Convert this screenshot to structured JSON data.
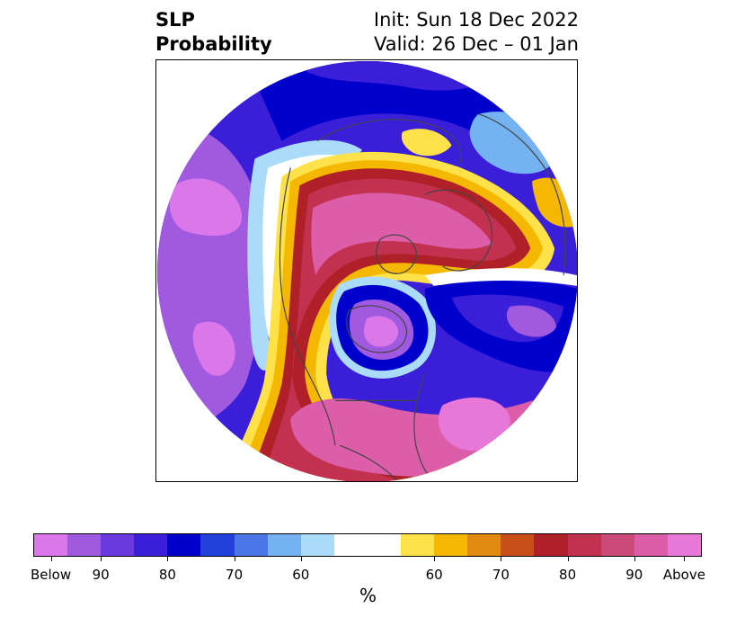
{
  "title": {
    "left_line1": "SLP",
    "left_line2": "Probability",
    "right_line1": "Init: Sun 18 Dec 2022",
    "right_line2": "Valid: 26 Dec – 01 Jan"
  },
  "colorbar": {
    "colors": [
      "#db77ea",
      "#a05ae0",
      "#6a3ade",
      "#3a1ed8",
      "#0000cc",
      "#2240dc",
      "#4a76e8",
      "#74b2f2",
      "#aadcfa",
      "#ffffff",
      "#ffe24a",
      "#f5b800",
      "#e08a10",
      "#c85018",
      "#b02028",
      "#c23250",
      "#cc4a7a",
      "#dc5ea8",
      "#e878d8"
    ],
    "widths": [
      1,
      1,
      1,
      1,
      1,
      1,
      1,
      1,
      1,
      2,
      1,
      1,
      1,
      1,
      1,
      1,
      1,
      1,
      1
    ],
    "tick_labels": [
      "Below",
      "90",
      "80",
      "70",
      "60",
      "60",
      "70",
      "80",
      "90",
      "Above"
    ],
    "unit": "%"
  },
  "map": {
    "projection": "polar",
    "palette": {
      "below_strong": "#db77ea",
      "below_mid": "#a05ae0",
      "below_dark": "#3a1ed8",
      "below_blue": "#0000cc",
      "below_light": "#74b2f2",
      "below_pale": "#aadcfa",
      "above_yellow": "#ffe24a",
      "above_orange": "#f5b800",
      "above_red": "#b02028",
      "above_rose": "#c23250",
      "above_pink": "#dc5ea8",
      "above_magenta": "#e878d8",
      "coast": "#444444"
    }
  }
}
